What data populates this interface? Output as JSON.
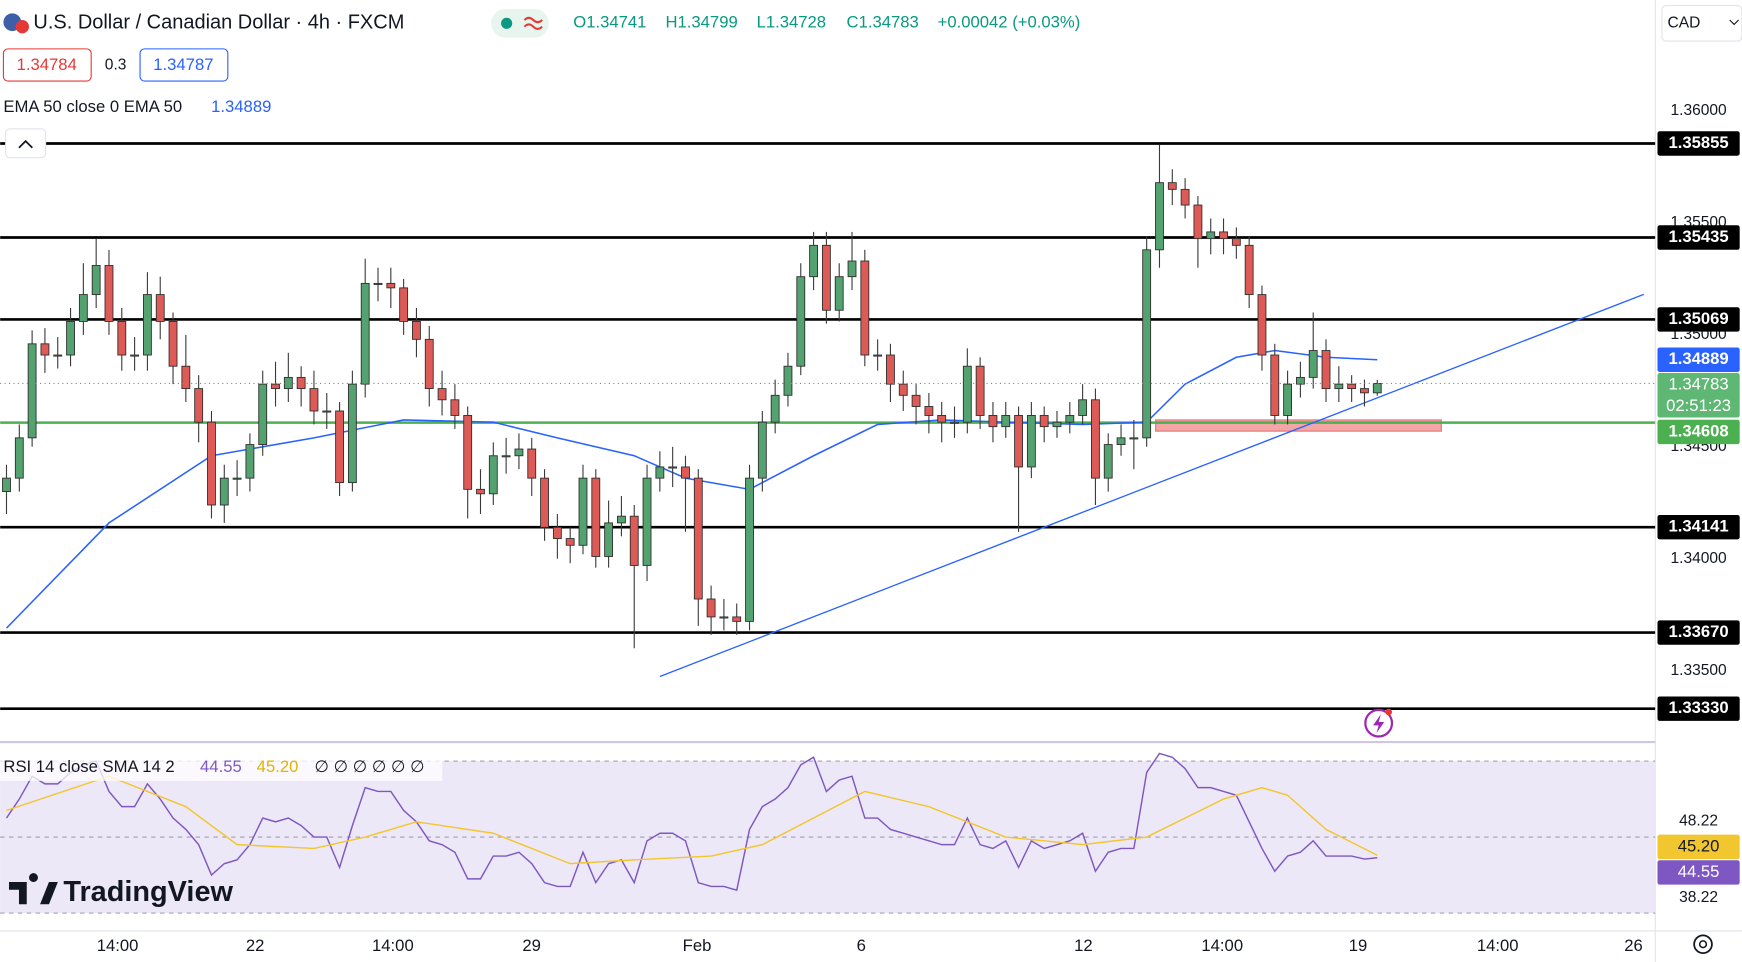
{
  "header": {
    "ohlc": [
      "O1.34741",
      "H1.34799",
      "L1.34728",
      "C1.34783"
    ],
    "change": "+0.00042 (+0.03%)",
    "bid": "1.34784",
    "spread": "0.3",
    "ask": "1.34787",
    "currency": "CAD",
    "countdown": "02:51:23",
    "brand": "TradingView"
  },
  "chart_data": [
    {
      "type": "candlestick",
      "title": "U.S. Dollar / Canadian Dollar · 4h · FXCM",
      "up_color": "#53a26f",
      "down_color": "#de5a56",
      "open": [
        1.343,
        1.3436,
        1.3454,
        1.3496,
        1.3491,
        1.3491,
        1.3506,
        1.3518,
        1.3531,
        1.3506,
        1.3491,
        1.3491,
        1.3518,
        1.3506,
        1.3486,
        1.3476,
        1.3461,
        1.3424,
        1.3436,
        1.3436,
        1.3451,
        1.3478,
        1.3476,
        1.3481,
        1.3476,
        1.3466,
        1.3466,
        1.3434,
        1.3478,
        1.3523,
        1.3523,
        1.3521,
        1.3506,
        1.3498,
        1.3476,
        1.3471,
        1.3464,
        1.3431,
        1.3429,
        1.3446,
        1.3446,
        1.3449,
        1.3436,
        1.3414,
        1.3409,
        1.3406,
        1.3436,
        1.3401,
        1.3416,
        1.3419,
        1.3397,
        1.3436,
        1.3441,
        1.3441,
        1.3436,
        1.3382,
        1.3374,
        1.3374,
        1.3372,
        1.3436,
        1.3461,
        1.3473,
        1.3486,
        1.3526,
        1.354,
        1.3511,
        1.3526,
        1.3533,
        1.3491,
        1.3491,
        1.3478,
        1.3473,
        1.3468,
        1.3464,
        1.3461,
        1.3461,
        1.3486,
        1.3464,
        1.3459,
        1.3464,
        1.3441,
        1.3464,
        1.3459,
        1.3461,
        1.3464,
        1.3471,
        1.3436,
        1.3451,
        1.3454,
        1.3454,
        1.3538,
        1.3568,
        1.3565,
        1.3558,
        1.3543,
        1.3546,
        1.3543,
        1.354,
        1.3518,
        1.3491,
        1.3464,
        1.3478,
        1.3481,
        1.3493,
        1.3476,
        1.3478,
        1.3476,
        1.34741
      ],
      "high": [
        1.3442,
        1.346,
        1.3502,
        1.3503,
        1.3499,
        1.3512,
        1.3532,
        1.3543,
        1.3538,
        1.3512,
        1.3499,
        1.3528,
        1.3526,
        1.351,
        1.35,
        1.3482,
        1.3466,
        1.3442,
        1.3444,
        1.3456,
        1.3484,
        1.3488,
        1.3492,
        1.3486,
        1.3484,
        1.3474,
        1.347,
        1.3484,
        1.3534,
        1.353,
        1.353,
        1.3525,
        1.3512,
        1.3504,
        1.3484,
        1.3478,
        1.3468,
        1.344,
        1.3452,
        1.3454,
        1.3456,
        1.3454,
        1.344,
        1.342,
        1.3414,
        1.3442,
        1.344,
        1.3426,
        1.3428,
        1.3424,
        1.3442,
        1.3448,
        1.345,
        1.3446,
        1.344,
        1.3388,
        1.3382,
        1.338,
        1.3442,
        1.3466,
        1.348,
        1.3492,
        1.3532,
        1.3546,
        1.3546,
        1.3532,
        1.3546,
        1.3538,
        1.3498,
        1.3496,
        1.3484,
        1.3478,
        1.3474,
        1.347,
        1.3468,
        1.3494,
        1.349,
        1.347,
        1.347,
        1.3468,
        1.347,
        1.3468,
        1.3466,
        1.347,
        1.3478,
        1.3476,
        1.3456,
        1.346,
        1.3462,
        1.3544,
        1.3585,
        1.3574,
        1.357,
        1.3562,
        1.3552,
        1.3552,
        1.3548,
        1.3544,
        1.3522,
        1.3496,
        1.3484,
        1.3488,
        1.351,
        1.3498,
        1.3486,
        1.3482,
        1.348,
        1.34799
      ],
      "low": [
        1.342,
        1.343,
        1.345,
        1.3483,
        1.3485,
        1.3486,
        1.35,
        1.3512,
        1.35,
        1.3484,
        1.3484,
        1.3484,
        1.3498,
        1.3478,
        1.347,
        1.3452,
        1.3418,
        1.3416,
        1.3428,
        1.343,
        1.3446,
        1.3468,
        1.347,
        1.3468,
        1.346,
        1.3458,
        1.3428,
        1.343,
        1.3472,
        1.3515,
        1.3512,
        1.35,
        1.349,
        1.3468,
        1.3464,
        1.3458,
        1.3418,
        1.342,
        1.3424,
        1.3438,
        1.344,
        1.3428,
        1.3408,
        1.34,
        1.3398,
        1.3402,
        1.3396,
        1.3396,
        1.341,
        1.336,
        1.339,
        1.343,
        1.3432,
        1.3412,
        1.337,
        1.3366,
        1.3368,
        1.3366,
        1.3368,
        1.343,
        1.3456,
        1.3468,
        1.3482,
        1.352,
        1.3505,
        1.3506,
        1.352,
        1.3486,
        1.3484,
        1.347,
        1.3466,
        1.346,
        1.3456,
        1.3452,
        1.3454,
        1.3456,
        1.3458,
        1.3452,
        1.3454,
        1.3412,
        1.3436,
        1.3452,
        1.3454,
        1.3456,
        1.346,
        1.3424,
        1.343,
        1.3446,
        1.344,
        1.345,
        1.353,
        1.3558,
        1.3552,
        1.353,
        1.3536,
        1.3536,
        1.3534,
        1.3512,
        1.3484,
        1.346,
        1.346,
        1.3472,
        1.3476,
        1.347,
        1.347,
        1.347,
        1.3468,
        1.34728
      ],
      "close": [
        1.3436,
        1.3454,
        1.3496,
        1.3491,
        1.3491,
        1.3506,
        1.3518,
        1.3531,
        1.3506,
        1.3491,
        1.3491,
        1.3518,
        1.3506,
        1.3486,
        1.3476,
        1.3461,
        1.3424,
        1.3436,
        1.3436,
        1.3451,
        1.3478,
        1.3476,
        1.3481,
        1.3476,
        1.3466,
        1.3466,
        1.3434,
        1.3478,
        1.3523,
        1.3523,
        1.3521,
        1.3506,
        1.3498,
        1.3476,
        1.3471,
        1.3464,
        1.3431,
        1.3429,
        1.3446,
        1.3446,
        1.3449,
        1.3436,
        1.3414,
        1.3409,
        1.3406,
        1.3436,
        1.3401,
        1.3416,
        1.3419,
        1.3397,
        1.3436,
        1.3441,
        1.3441,
        1.3436,
        1.3382,
        1.3374,
        1.3374,
        1.3372,
        1.3436,
        1.3461,
        1.3473,
        1.3486,
        1.3526,
        1.354,
        1.3511,
        1.3526,
        1.3533,
        1.3491,
        1.3491,
        1.3478,
        1.3473,
        1.3468,
        1.3464,
        1.3461,
        1.3461,
        1.3486,
        1.3464,
        1.3459,
        1.3464,
        1.3441,
        1.3464,
        1.3459,
        1.3461,
        1.3464,
        1.3471,
        1.3436,
        1.3451,
        1.3454,
        1.3454,
        1.3538,
        1.3568,
        1.3565,
        1.3558,
        1.3543,
        1.3546,
        1.3543,
        1.354,
        1.3518,
        1.3491,
        1.3464,
        1.3478,
        1.3481,
        1.3493,
        1.3476,
        1.3478,
        1.3476,
        1.34741,
        1.34783
      ],
      "last_color": "#4caf50",
      "ema": {
        "name": "EMA 50 close 0 EMA 50",
        "color": "#2962ff",
        "x": [
          0,
          8,
          16,
          24,
          31,
          38,
          43,
          49,
          53,
          58,
          63,
          68,
          73,
          78,
          84,
          89,
          92,
          96,
          99,
          103,
          107
        ],
        "values": [
          1.3369,
          1.3416,
          1.3446,
          1.3454,
          1.3462,
          1.3461,
          1.3454,
          1.3446,
          1.3436,
          1.3431,
          1.3446,
          1.346,
          1.3462,
          1.3461,
          1.346,
          1.3461,
          1.3478,
          1.349,
          1.3493,
          1.349,
          1.34889
        ]
      },
      "levels": [
        1.35855,
        1.35435,
        1.35069,
        1.34141,
        {
          "value": 1.3367,
          "label": "1.33670"
        },
        {
          "value": 1.3333,
          "label": "1.33330"
        }
      ],
      "level_color": "#000000",
      "support": {
        "value": 1.34608,
        "color": "#4caf50"
      },
      "zone": {
        "x": [
          89.7,
          112.0
        ],
        "y": [
          1.3457,
          1.3462
        ],
        "color": "#f4a6a6"
      },
      "trendline": {
        "x": [
          51.0,
          127.8
        ],
        "y": [
          1.33474,
          1.35181
        ],
        "color": "#2962ff"
      },
      "xlim": [
        -0.5,
        128.7
      ],
      "ylim": [
        1.33181,
        1.36496
      ],
      "yticks": [
        {
          "value": 1.36,
          "label": "1.36000"
        },
        {
          "value": 1.355,
          "label": "1.35500"
        },
        {
          "value": 1.35,
          "label": "1.35000"
        },
        {
          "value": 1.345,
          "label": "1.34500"
        },
        {
          "value": 1.34,
          "label": "1.34000"
        },
        {
          "value": 1.335,
          "label": "1.33500"
        }
      ],
      "xticks": [
        {
          "value": 8.67,
          "label": "14:00"
        },
        {
          "value": 19.41,
          "label": "22"
        },
        {
          "value": 30.16,
          "label": "14:00"
        },
        {
          "value": 40.99,
          "label": "29"
        },
        {
          "value": 53.9,
          "label": "Feb"
        },
        {
          "value": 66.72,
          "label": "6"
        },
        {
          "value": 84.06,
          "label": "12"
        },
        {
          "value": 94.9,
          "label": "14:00"
        },
        {
          "value": 105.5,
          "label": "19"
        },
        {
          "value": 116.4,
          "label": "14:00"
        },
        {
          "value": 127.0,
          "label": "26"
        }
      ],
      "grid": false
    },
    {
      "type": "rsi",
      "title": "RSI 14 close SMA 14 2",
      "extras": "∅ ∅ ∅ ∅ ∅ ∅",
      "rsi": {
        "color": "#7e57c2",
        "values": [
          55,
          60,
          66,
          64,
          64,
          67,
          69,
          70,
          62,
          58,
          58,
          64,
          60,
          55,
          52,
          48,
          40,
          43,
          44,
          48,
          55,
          54,
          55,
          53,
          50,
          50,
          42,
          53,
          63,
          62,
          62,
          57,
          54,
          49,
          48,
          46,
          39,
          39,
          45,
          45,
          46,
          43,
          38,
          37,
          37,
          46,
          38,
          43,
          44,
          38,
          49,
          51,
          51,
          49,
          38,
          37,
          37,
          36,
          52,
          58,
          60,
          63,
          69,
          71,
          62,
          65,
          66,
          55,
          55,
          52,
          51,
          50,
          49,
          48,
          48,
          55,
          48,
          47,
          49,
          42,
          49,
          47,
          48,
          49,
          51,
          41,
          46,
          47,
          47,
          67,
          72,
          71,
          68,
          63,
          63,
          62,
          61,
          54,
          47,
          41,
          45,
          46,
          49,
          45,
          45,
          45,
          44.2,
          44.55
        ]
      },
      "sma": {
        "color": "#f2c62f",
        "x": [
          0,
          8,
          14,
          18,
          24,
          28,
          32,
          38,
          44,
          49,
          55,
          59,
          63,
          67,
          72,
          78,
          84,
          89,
          95,
          98,
          100,
          103,
          107
        ],
        "values": [
          57,
          66,
          58,
          48,
          47,
          50,
          54,
          51,
          43,
          44,
          45,
          48,
          55,
          62,
          58,
          50,
          48,
          50,
          60,
          63,
          61,
          52,
          45.2
        ],
        "last_label": "45.20"
      },
      "bands": [
        70,
        50,
        30
      ],
      "band_fill": "#ede8f7",
      "xlim": [
        -0.5,
        128.7
      ],
      "ylim": [
        25.3,
        75
      ],
      "yticks": [
        48.22,
        38.22
      ]
    }
  ]
}
